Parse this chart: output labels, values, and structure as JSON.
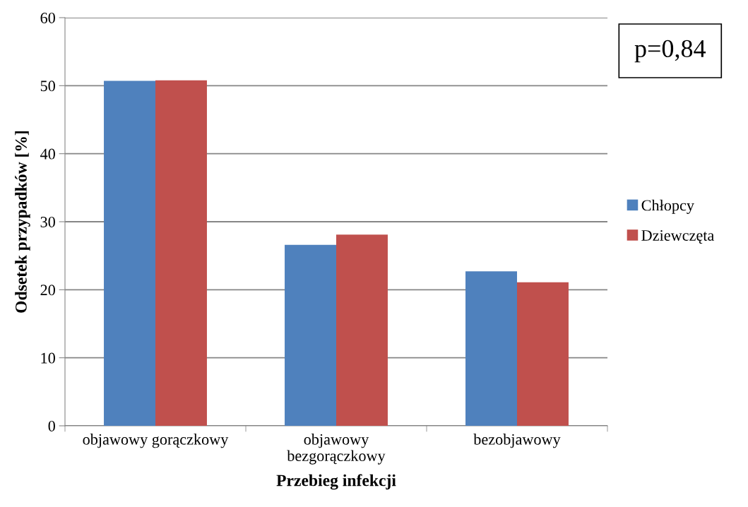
{
  "chart_data": {
    "type": "bar",
    "xlabel": "Przebieg infekcji",
    "ylabel": "Odsetek przypadków [%]",
    "categories": [
      "objawowy gorączkowy",
      "objawowy\nbezgorączkowy",
      "bezobjawowy"
    ],
    "series": [
      {
        "name": "Chłopcy",
        "color": "#4f81bd",
        "values": [
          50.7,
          26.6,
          22.7
        ]
      },
      {
        "name": "Dziewczęta",
        "color": "#c0504d",
        "values": [
          50.8,
          28.1,
          21.1
        ]
      }
    ],
    "ylim": [
      0,
      60
    ],
    "yticks": [
      0,
      10,
      20,
      30,
      40,
      50,
      60
    ],
    "grid": "y",
    "legend": "right",
    "annotations": [
      "p=0,84"
    ]
  }
}
